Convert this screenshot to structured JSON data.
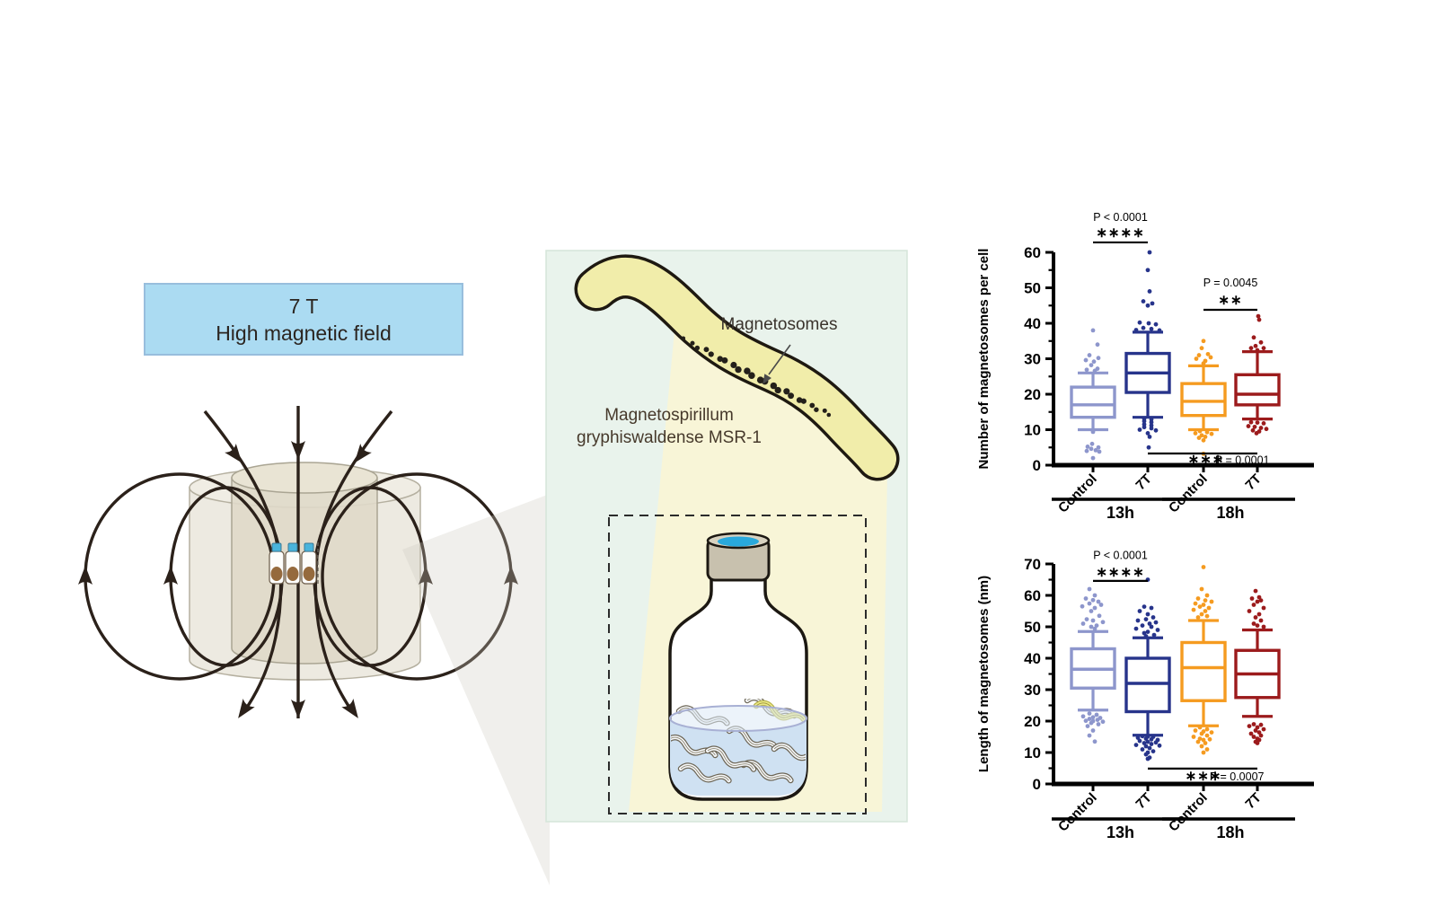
{
  "left_panel": {
    "title_line1": "7 T",
    "title_line2": "High magnetic field",
    "box_fill": "#abdbf2",
    "box_border": "#98bedd"
  },
  "middle_panel": {
    "panel_bg": "#e9f3ec",
    "magnetosomes_label": "Magnetosomes",
    "organism_line1": "Magnetospirillum",
    "organism_line2": "gryphiswaldense MSR-1"
  },
  "chart_data": [
    {
      "type": "box",
      "ylabel": "Number of magnetosomes per cell",
      "ylim": [
        0,
        60
      ],
      "ytick_major": 10,
      "ytick_minor": 5,
      "categories": [
        "Control",
        "7T",
        "Control",
        "7T"
      ],
      "group_labels": [
        "13h",
        "18h"
      ],
      "group_spans": [
        [
          0,
          1
        ],
        [
          2,
          3
        ]
      ],
      "colors": [
        "#8d96cc",
        "#27348b",
        "#f59b20",
        "#9c1b1c"
      ],
      "boxes": [
        {
          "low": 10,
          "q1": 13.5,
          "median": 17,
          "q3": 22,
          "high": 26
        },
        {
          "low": 13.5,
          "q1": 20.5,
          "median": 26,
          "q3": 31.5,
          "high": 37.5
        },
        {
          "low": 10,
          "q1": 14,
          "median": 18,
          "q3": 23,
          "high": 28
        },
        {
          "low": 13,
          "q1": 17,
          "median": 20,
          "q3": 25.5,
          "high": 32
        }
      ],
      "points": [
        [
          [
            0,
            38
          ],
          [
            5,
            34
          ],
          [
            -4,
            31
          ],
          [
            6,
            30.2
          ],
          [
            -8,
            29.6
          ],
          [
            1,
            29.2
          ],
          [
            -2,
            28.2
          ],
          [
            5,
            27.2
          ],
          [
            -7,
            26.9
          ],
          [
            2,
            26.6
          ],
          [
            0,
            9.4
          ],
          [
            -1,
            6
          ],
          [
            -6,
            5.2
          ],
          [
            6,
            5
          ],
          [
            -2,
            4.6
          ],
          [
            3,
            4.2
          ],
          [
            -7,
            4
          ],
          [
            7,
            3.8
          ],
          [
            0,
            2
          ]
        ],
        [
          [
            2,
            60
          ],
          [
            0,
            55
          ],
          [
            2,
            49
          ],
          [
            -5,
            46.2
          ],
          [
            5,
            45.6
          ],
          [
            0,
            45
          ],
          [
            -9,
            40.2
          ],
          [
            1,
            40
          ],
          [
            9,
            39.7
          ],
          [
            -5,
            38.7
          ],
          [
            4,
            38.4
          ],
          [
            -13,
            38.1
          ],
          [
            13,
            38
          ],
          [
            -4,
            13.1
          ],
          [
            4,
            12.9
          ],
          [
            -4,
            12.4
          ],
          [
            4,
            12.1
          ],
          [
            -4,
            11.5
          ],
          [
            4,
            11.2
          ],
          [
            -4,
            10.7
          ],
          [
            4,
            10.4
          ],
          [
            -9,
            10
          ],
          [
            9,
            9.8
          ],
          [
            0,
            9
          ],
          [
            2,
            8
          ],
          [
            1,
            5
          ]
        ],
        [
          [
            0,
            35
          ],
          [
            -2,
            33
          ],
          [
            5,
            31.3
          ],
          [
            -5,
            31
          ],
          [
            8,
            30.4
          ],
          [
            -8,
            30
          ],
          [
            2,
            29.4
          ],
          [
            0,
            28.7
          ],
          [
            -4,
            9.6
          ],
          [
            4,
            9.3
          ],
          [
            -9,
            9
          ],
          [
            9,
            8.8
          ],
          [
            -2,
            8.4
          ],
          [
            2,
            8
          ],
          [
            -5,
            7.7
          ],
          [
            0,
            7
          ],
          [
            0,
            3.2
          ]
        ],
        [
          [
            1,
            42
          ],
          [
            2,
            41
          ],
          [
            -4,
            36
          ],
          [
            4,
            34.6
          ],
          [
            -2,
            33.6
          ],
          [
            -7,
            33
          ],
          [
            7,
            33
          ],
          [
            0,
            32.4
          ],
          [
            -7,
            12.1
          ],
          [
            0,
            12
          ],
          [
            7,
            11.8
          ],
          [
            -10,
            11
          ],
          [
            -3,
            10.8
          ],
          [
            4,
            10.5
          ],
          [
            10,
            10.2
          ],
          [
            -5,
            9.8
          ],
          [
            2,
            9.5
          ],
          [
            -1,
            9
          ]
        ]
      ],
      "significance": [
        {
          "between": [
            0,
            1
          ],
          "line_y": 62.8,
          "labels": [
            {
              "text": "P < 0.0001",
              "x": 0.5,
              "y": 68.8
            },
            {
              "text": "∗∗∗∗",
              "x": 0.5,
              "y": 64.3,
              "star": true
            }
          ]
        },
        {
          "between": [
            2,
            3
          ],
          "line_y": 43.8,
          "labels": [
            {
              "text": "P = 0.0045",
              "x": 2.5,
              "y": 50.4
            },
            {
              "text": "∗∗",
              "x": 2.5,
              "y": 45.3,
              "star": true
            }
          ]
        },
        {
          "between": [
            1,
            3
          ],
          "line_y": 3.3,
          "labels": [
            {
              "text": "∗∗∗",
              "x": 2.05,
              "y": 0.4,
              "star": true
            },
            {
              "text": "P = 0.0001",
              "x": 2.72,
              "y": 0.4
            }
          ]
        }
      ]
    },
    {
      "type": "box",
      "ylabel": "Length of magnetosomes (nm)",
      "ylim": [
        0,
        70
      ],
      "ytick_major": 10,
      "ytick_minor": 5,
      "categories": [
        "Control",
        "7T",
        "Control",
        "7T"
      ],
      "group_labels": [
        "13h",
        "18h"
      ],
      "group_spans": [
        [
          0,
          1
        ],
        [
          2,
          3
        ]
      ],
      "colors": [
        "#8d96cc",
        "#27348b",
        "#f59b20",
        "#9c1b1c"
      ],
      "boxes": [
        {
          "low": 23.5,
          "q1": 30.5,
          "median": 36.5,
          "q3": 43,
          "high": 48.5
        },
        {
          "low": 15.5,
          "q1": 23,
          "median": 32,
          "q3": 40,
          "high": 46.5
        },
        {
          "low": 18.5,
          "q1": 26.5,
          "median": 37,
          "q3": 45,
          "high": 52
        },
        {
          "low": 21.5,
          "q1": 27.5,
          "median": 35,
          "q3": 42.5,
          "high": 49
        }
      ],
      "points": [
        [
          [
            -4,
            62
          ],
          [
            2,
            60
          ],
          [
            -8,
            59
          ],
          [
            0,
            58.5
          ],
          [
            6,
            58
          ],
          [
            -4,
            57.4
          ],
          [
            9,
            57
          ],
          [
            -12,
            56.5
          ],
          [
            2,
            56
          ],
          [
            -2,
            55
          ],
          [
            7,
            53.5
          ],
          [
            -7,
            52.4
          ],
          [
            0,
            52
          ],
          [
            11,
            51.5
          ],
          [
            -11,
            51
          ],
          [
            4,
            50.4
          ],
          [
            -2,
            50
          ],
          [
            2,
            49.4
          ],
          [
            -4,
            22.4
          ],
          [
            4,
            22
          ],
          [
            -11,
            21.5
          ],
          [
            0,
            21.2
          ],
          [
            8,
            21
          ],
          [
            -4,
            20.7
          ],
          [
            5,
            20.4
          ],
          [
            -8,
            20.1
          ],
          [
            0,
            20
          ],
          [
            11,
            19.8
          ],
          [
            -2,
            19.4
          ],
          [
            6,
            19
          ],
          [
            -6,
            18.4
          ],
          [
            0,
            17
          ],
          [
            -4,
            15.4
          ],
          [
            2,
            13.5
          ]
        ],
        [
          [
            0,
            65
          ],
          [
            -4,
            56.4
          ],
          [
            4,
            56
          ],
          [
            -9,
            55
          ],
          [
            0,
            54
          ],
          [
            6,
            53
          ],
          [
            -2,
            52.4
          ],
          [
            -11,
            52
          ],
          [
            9,
            51.4
          ],
          [
            2,
            51
          ],
          [
            -6,
            50.4
          ],
          [
            4,
            50
          ],
          [
            -13,
            49.4
          ],
          [
            11,
            49
          ],
          [
            0,
            48.4
          ],
          [
            -4,
            48
          ],
          [
            7,
            47.4
          ],
          [
            -2,
            47
          ],
          [
            -6,
            15.2
          ],
          [
            0,
            15.1
          ],
          [
            6,
            15
          ],
          [
            -11,
            14.7
          ],
          [
            -2,
            14.4
          ],
          [
            4,
            14.2
          ],
          [
            11,
            14
          ],
          [
            -9,
            13.7
          ],
          [
            0,
            13.4
          ],
          [
            9,
            13.2
          ],
          [
            -4,
            13
          ],
          [
            4,
            12.7
          ],
          [
            -13,
            12.4
          ],
          [
            13,
            12.2
          ],
          [
            -2,
            12
          ],
          [
            2,
            11.4
          ],
          [
            -6,
            11
          ],
          [
            6,
            10.4
          ],
          [
            0,
            10
          ],
          [
            -2,
            9.4
          ],
          [
            2,
            8.4
          ],
          [
            0,
            8
          ]
        ],
        [
          [
            0,
            69
          ],
          [
            -2,
            62
          ],
          [
            4,
            60
          ],
          [
            -6,
            59
          ],
          [
            2,
            58.4
          ],
          [
            9,
            58
          ],
          [
            -9,
            57.4
          ],
          [
            0,
            57
          ],
          [
            -4,
            56.4
          ],
          [
            6,
            56
          ],
          [
            -11,
            55.4
          ],
          [
            2,
            55
          ],
          [
            -2,
            54
          ],
          [
            4,
            53.4
          ],
          [
            -6,
            53
          ],
          [
            -4,
            18
          ],
          [
            4,
            17.4
          ],
          [
            -9,
            17
          ],
          [
            0,
            16.7
          ],
          [
            9,
            16.4
          ],
          [
            -2,
            16
          ],
          [
            4,
            15.4
          ],
          [
            -11,
            15
          ],
          [
            -4,
            14.4
          ],
          [
            7,
            14.2
          ],
          [
            0,
            14
          ],
          [
            -6,
            13.4
          ],
          [
            2,
            13
          ],
          [
            -2,
            12
          ],
          [
            4,
            11
          ],
          [
            0,
            10
          ]
        ],
        [
          [
            -2,
            61.4
          ],
          [
            2,
            59.4
          ],
          [
            -6,
            59
          ],
          [
            4,
            58.4
          ],
          [
            0,
            58
          ],
          [
            -4,
            57
          ],
          [
            7,
            56
          ],
          [
            -9,
            55
          ],
          [
            2,
            54
          ],
          [
            -2,
            53
          ],
          [
            4,
            52
          ],
          [
            -4,
            51
          ],
          [
            0,
            50.4
          ],
          [
            7,
            50
          ],
          [
            -4,
            19
          ],
          [
            4,
            18.8
          ],
          [
            -9,
            18.4
          ],
          [
            0,
            18
          ],
          [
            7,
            17.4
          ],
          [
            -2,
            17
          ],
          [
            2,
            16.4
          ],
          [
            -7,
            16
          ],
          [
            4,
            15.4
          ],
          [
            -4,
            15
          ],
          [
            0,
            14.4
          ],
          [
            2,
            14
          ],
          [
            -2,
            13.4
          ],
          [
            0,
            13
          ]
        ]
      ],
      "significance": [
        {
          "between": [
            0,
            1
          ],
          "line_y": 64.6,
          "labels": [
            {
              "text": "P < 0.0001",
              "x": 0.5,
              "y": 71.6
            },
            {
              "text": "∗∗∗∗",
              "x": 0.5,
              "y": 66,
              "star": true
            }
          ]
        },
        {
          "between": [
            1,
            3
          ],
          "line_y": 4.9,
          "labels": [
            {
              "text": "∗∗∗",
              "x": 2.0,
              "y": 1.2,
              "star": true
            },
            {
              "text": "P = 0.0007",
              "x": 2.62,
              "y": 1.2
            }
          ]
        }
      ]
    }
  ]
}
